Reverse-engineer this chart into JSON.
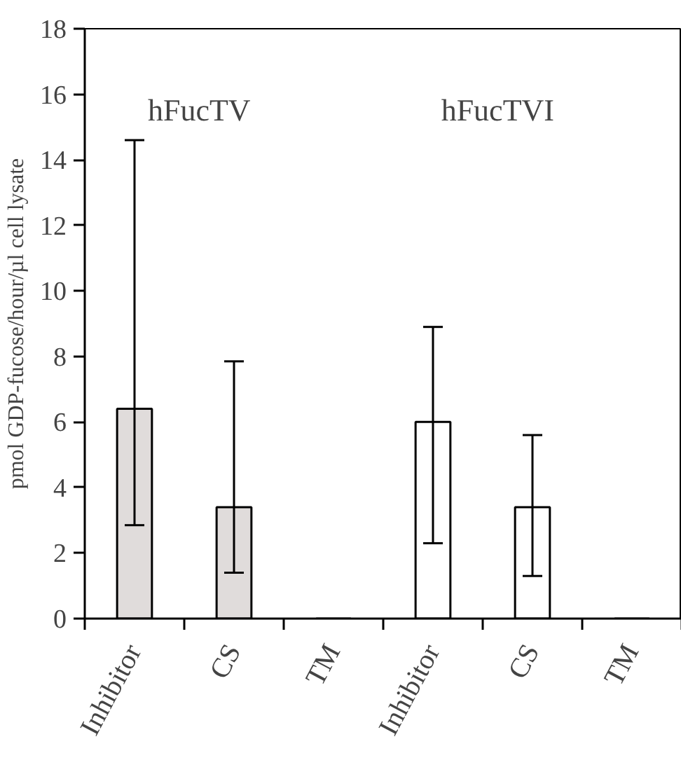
{
  "chart_data": {
    "type": "bar",
    "ylabel": "pmol GDP-fucose/hour/µl cell lysate",
    "categories": [
      "Inhibitor",
      "CS",
      "TM",
      "Inhibitor",
      "CS",
      "TM"
    ],
    "values": [
      6.4,
      3.4,
      0,
      6.0,
      3.4,
      0
    ],
    "colors": [
      "#e0dcdb",
      "#e0dcdb",
      "#e0dcdb",
      "#ffffff",
      "#ffffff",
      "#ffffff"
    ],
    "errors": [
      [
        2.85,
        14.6
      ],
      [
        1.4,
        7.85
      ],
      null,
      [
        2.3,
        8.9
      ],
      [
        1.3,
        5.6
      ],
      null
    ],
    "ylim": [
      0,
      18
    ],
    "yticks": [
      0,
      2,
      4,
      6,
      8,
      10,
      12,
      14,
      16,
      18
    ],
    "annotations": [
      "hFucTV",
      "hFucTVI"
    ],
    "grid": false
  }
}
